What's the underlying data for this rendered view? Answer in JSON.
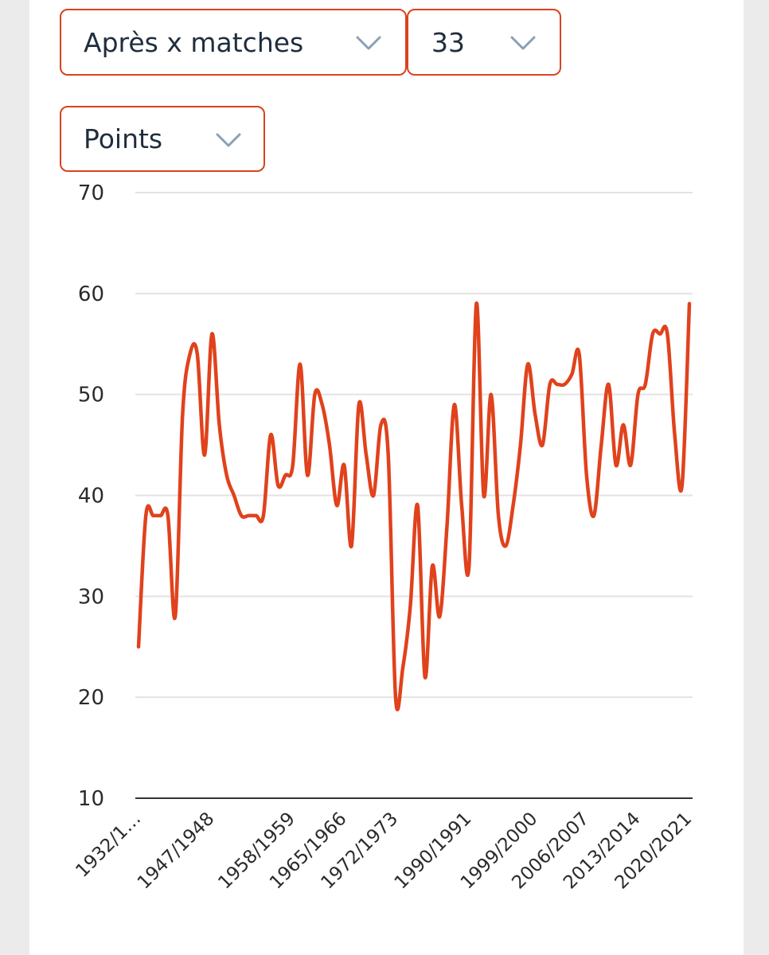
{
  "controls": {
    "mode": {
      "label": "Après x matches",
      "icon": "chevron-down-icon"
    },
    "match_count": {
      "label": "33",
      "icon": "chevron-down-icon"
    },
    "metric": {
      "label": "Points",
      "icon": "chevron-down-icon"
    }
  },
  "colors": {
    "accent": "#d8431f",
    "line": "#e0421c",
    "grid": "#e3e3e3",
    "axis": "#333333",
    "chevron": "#8aa0b4"
  },
  "chart_data": {
    "type": "line",
    "title": "",
    "xlabel": "",
    "ylabel": "",
    "ylim": [
      10,
      70
    ],
    "yticks": [
      10,
      20,
      30,
      40,
      50,
      60,
      70
    ],
    "x_tick_labels": [
      "1932/1…",
      "1947/1948",
      "1958/1959",
      "1965/1966",
      "1972/1973",
      "1990/1991",
      "1999/2000",
      "2006/2007",
      "2013/2014",
      "2020/2021"
    ],
    "x_tick_indices": [
      0,
      10,
      21,
      28,
      35,
      45,
      54,
      61,
      68,
      75
    ],
    "grid": true,
    "legend": "none",
    "series": [
      {
        "values": [
          25,
          38,
          38,
          38,
          38,
          28,
          48,
          54,
          54,
          44,
          56,
          47,
          42,
          40,
          38,
          38,
          38,
          38,
          46,
          41,
          42,
          43,
          53,
          42,
          50,
          49,
          45,
          39,
          43,
          35,
          49,
          44,
          40,
          47,
          44,
          20,
          23,
          29,
          39,
          22,
          33,
          28,
          37,
          49,
          39,
          33,
          59,
          40,
          50,
          38,
          35,
          39,
          45,
          53,
          48,
          45,
          51,
          51,
          51,
          52,
          54,
          42,
          38,
          45,
          51,
          43,
          47,
          43,
          50,
          51,
          56,
          56,
          56,
          46,
          41,
          59
        ]
      }
    ]
  }
}
